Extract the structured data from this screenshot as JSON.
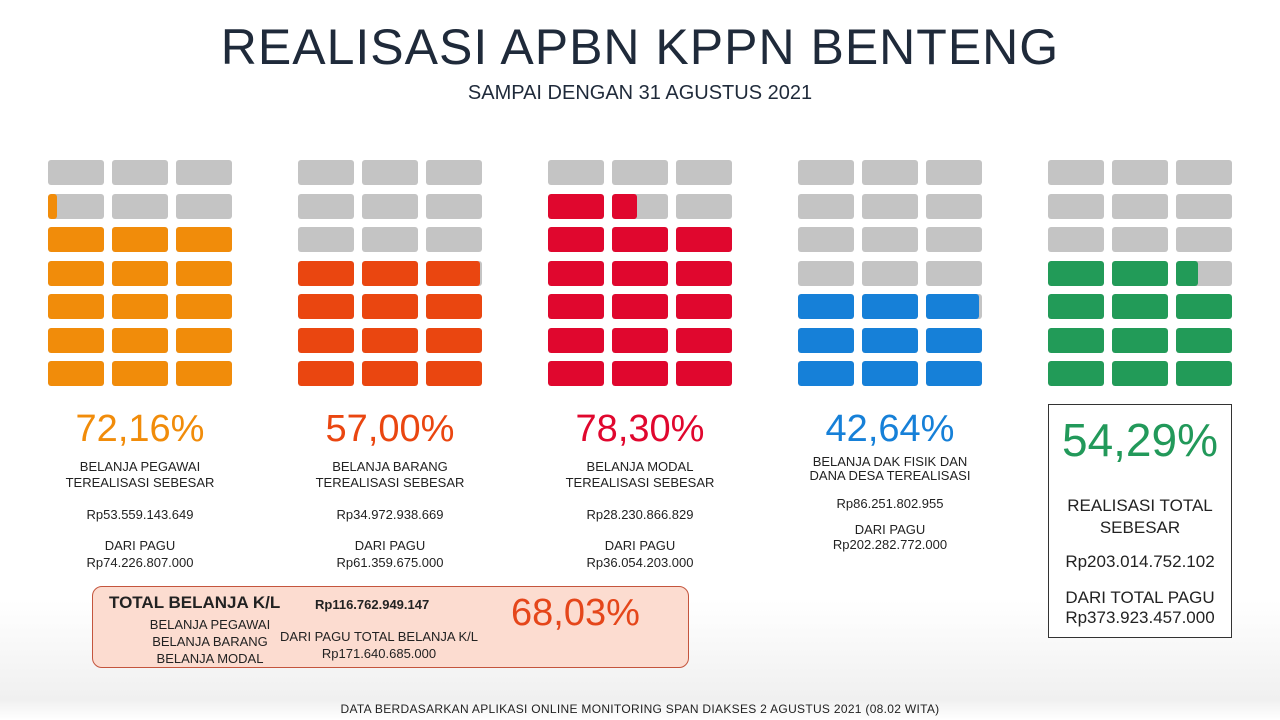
{
  "title": "REALISASI APBN KPPN BENTENG",
  "subtitle": "SAMPAI DENGAN 31 AGUSTUS 2021",
  "chart_data": {
    "type": "waffle",
    "grid": {
      "rows": 7,
      "cols": 3
    },
    "empty_color": "#c4c4c4",
    "series": [
      {
        "name": "BELANJA PEGAWAI",
        "percent": 72.16,
        "percent_label": "72,16%",
        "color": "#f18c0a",
        "label_lines": [
          "BELANJA PEGAWAI",
          "TEREALISASI SEBESAR"
        ],
        "realisasi": "Rp53.559.143.649",
        "pagu_label": "DARI PAGU",
        "pagu": "Rp74.226.807.000"
      },
      {
        "name": "BELANJA BARANG",
        "percent": 57.0,
        "percent_label": "57,00%",
        "color": "#ea4610",
        "label_lines": [
          "BELANJA BARANG",
          "TEREALISASI SEBESAR"
        ],
        "realisasi": "Rp34.972.938.669",
        "pagu_label": "DARI PAGU",
        "pagu": "Rp61.359.675.000"
      },
      {
        "name": "BELANJA MODAL",
        "percent": 78.3,
        "percent_label": "78,30%",
        "color": "#e0072e",
        "label_lines": [
          "BELANJA MODAL",
          "TEREALISASI SEBESAR"
        ],
        "realisasi": "Rp28.230.866.829",
        "pagu_label": "DARI PAGU",
        "pagu": "Rp36.054.203.000"
      },
      {
        "name": "BELANJA DAK FISIK DAN DANA DESA",
        "percent": 42.64,
        "percent_label": "42,64%",
        "color": "#1680d8",
        "label_lines": [
          "BELANJA DAK FISIK DAN",
          "DANA DESA TEREALISASI"
        ],
        "realisasi": "Rp86.251.802.955",
        "pagu_label": "DARI PAGU",
        "pagu": "Rp202.282.772.000"
      },
      {
        "name": "REALISASI TOTAL",
        "percent": 54.29,
        "percent_label": "54,29%",
        "color": "#229b58"
      }
    ]
  },
  "summary": {
    "percent_label": "54,29%",
    "line1": "REALISASI TOTAL",
    "line2": "SEBESAR",
    "realisasi": "Rp203.014.752.102",
    "pagu_label": "DARI TOTAL PAGU",
    "pagu": "Rp373.923.457.000"
  },
  "total_kl": {
    "title": "TOTAL  BELANJA K/L",
    "amount": "Rp116.762.949.147",
    "items": [
      "BELANJA PEGAWAI",
      "BELANJA BARANG",
      "BELANJA MODAL"
    ],
    "pagu_label": "DARI PAGU TOTAL BELANJA K/L",
    "pagu": "Rp171.640.685.000",
    "percent_label": "68,03%",
    "percent_color": "#e5461a"
  },
  "footer": "DATA BERDASARKAN APLIKASI ONLINE MONITORING SPAN DIAKSES 2 AGUSTUS 2021 (08.02 WITA)"
}
